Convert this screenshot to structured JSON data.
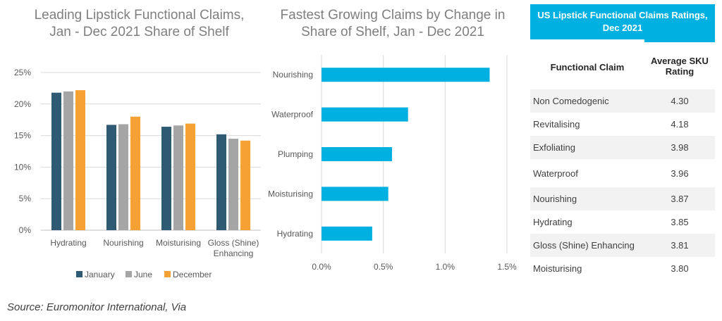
{
  "chart_data": [
    {
      "type": "bar",
      "title": "Leading Lipstick Functional Claims, Jan - Dec 2021 Share of Shelf",
      "categories": [
        "Hydrating",
        "Nourishing",
        "Moisturising",
        "Gloss (Shine) Enhancing"
      ],
      "series": [
        {
          "name": "January",
          "values": [
            21.8,
            16.7,
            16.4,
            15.2
          ]
        },
        {
          "name": "June",
          "values": [
            22.0,
            16.8,
            16.6,
            14.5
          ]
        },
        {
          "name": "December",
          "values": [
            22.2,
            18.0,
            16.9,
            14.2
          ]
        }
      ],
      "yticks": [
        "0%",
        "5%",
        "10%",
        "15%",
        "20%",
        "25%"
      ],
      "ylim": [
        0,
        25
      ],
      "colors": [
        "#2e5a73",
        "#a5a5a5",
        "#f5a133"
      ],
      "legend": "bottom",
      "grid": true
    },
    {
      "type": "bar",
      "orientation": "horizontal",
      "title": "Fastest Growing Claims by Change in Share of Shelf, Jan - Dec 2021",
      "categories": [
        "Nourishing",
        "Waterproof",
        "Plumping",
        "Moisturising",
        "Hydrating"
      ],
      "values": [
        1.36,
        0.7,
        0.57,
        0.54,
        0.41
      ],
      "xticks": [
        "0.0%",
        "0.5%",
        "1.0%",
        "1.5%"
      ],
      "xlim": [
        0,
        1.5
      ],
      "color": "#00b0e0",
      "grid": true
    }
  ],
  "table": {
    "title": "US Lipstick Functional Claims Ratings, Dec 2021",
    "col1": "Functional Claim",
    "col2": "Average SKU Rating",
    "rows": [
      {
        "claim": "Non Comedogenic",
        "rating": "4.30"
      },
      {
        "claim": "Revitalising",
        "rating": "4.18"
      },
      {
        "claim": "Exfoliating",
        "rating": "3.98"
      },
      {
        "claim": "Waterproof",
        "rating": "3.96"
      },
      {
        "claim": "Nourishing",
        "rating": "3.87"
      },
      {
        "claim": "Hydrating",
        "rating": "3.85"
      },
      {
        "claim": "Gloss (Shine) Enhancing",
        "rating": "3.81"
      },
      {
        "claim": "Moisturising",
        "rating": "3.80"
      }
    ]
  },
  "source": "Source: Euromonitor International, Via"
}
